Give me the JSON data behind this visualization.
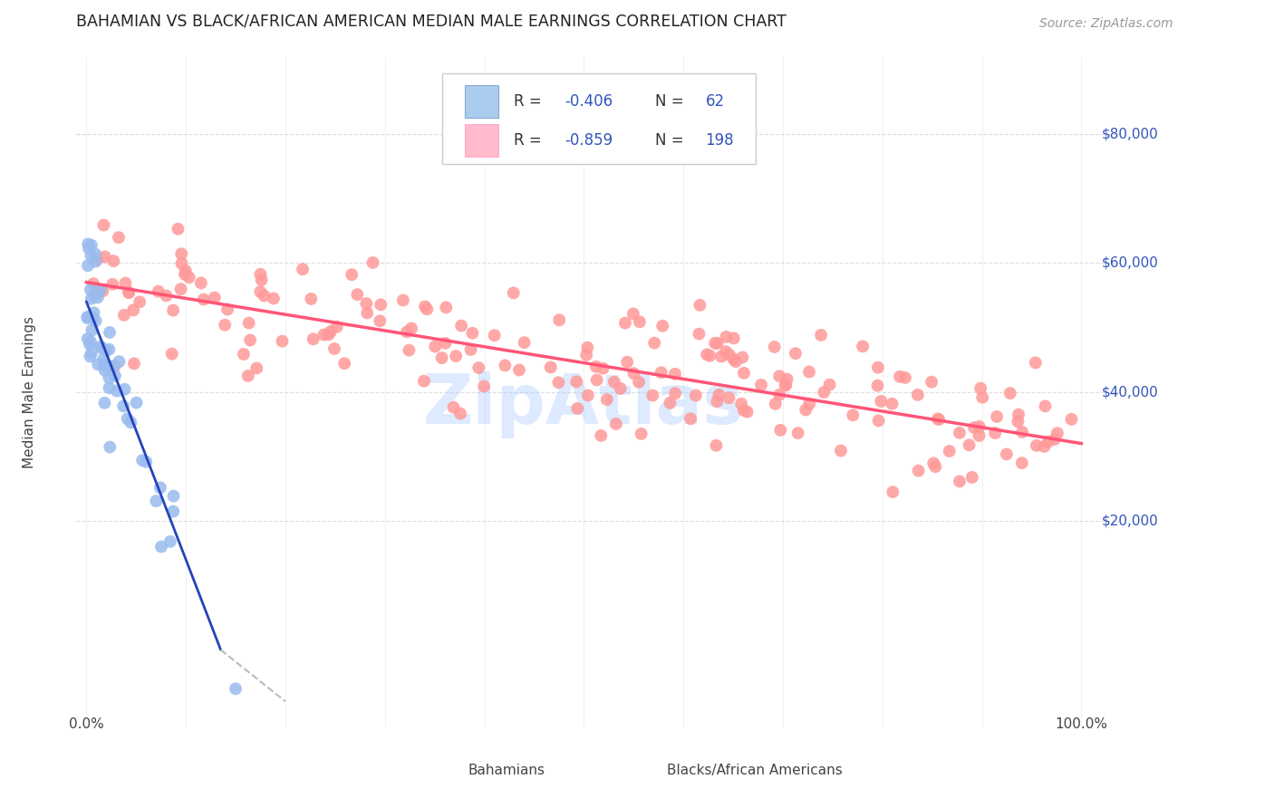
{
  "title": "BAHAMIAN VS BLACK/AFRICAN AMERICAN MEDIAN MALE EARNINGS CORRELATION CHART",
  "source": "Source: ZipAtlas.com",
  "ylabel": "Median Male Earnings",
  "y_ticks": [
    20000,
    40000,
    60000,
    80000
  ],
  "y_tick_labels": [
    "$20,000",
    "$40,000",
    "$60,000",
    "$80,000"
  ],
  "blue_color": "#99BBEE",
  "pink_color": "#FF9999",
  "blue_line_color": "#2244BB",
  "pink_line_color": "#FF5577",
  "dashed_line_color": "#BBBBBB",
  "watermark": "ZipAtlas",
  "watermark_color": "#AACCFF",
  "title_color": "#222222",
  "source_color": "#999999",
  "ylabel_color": "#444444",
  "legend_text_color": "#333333",
  "legend_value_color": "#3355BB",
  "grid_color": "#DDDDDD",
  "background_color": "#FFFFFF",
  "R_blue": "-0.406",
  "N_blue": "62",
  "R_pink": "-0.859",
  "N_pink": "198",
  "blue_patch_color": "#AACCEE",
  "blue_patch_edge": "#88AACC",
  "pink_patch_color": "#FFBBCC",
  "pink_patch_edge": "#FFAACC",
  "xlim": [
    -1,
    104
  ],
  "ylim": [
    -12000,
    92000
  ],
  "blue_reg_x0": 0.0,
  "blue_reg_y0": 54000,
  "blue_reg_x1": 13.5,
  "blue_reg_y1": 0,
  "blue_ext_x1": 13.5,
  "blue_ext_y1": 0,
  "blue_ext_x2": 20.0,
  "blue_ext_y2": -8000,
  "pink_reg_x0": 0.0,
  "pink_reg_y0": 57000,
  "pink_reg_x1": 100.0,
  "pink_reg_y1": 32000
}
